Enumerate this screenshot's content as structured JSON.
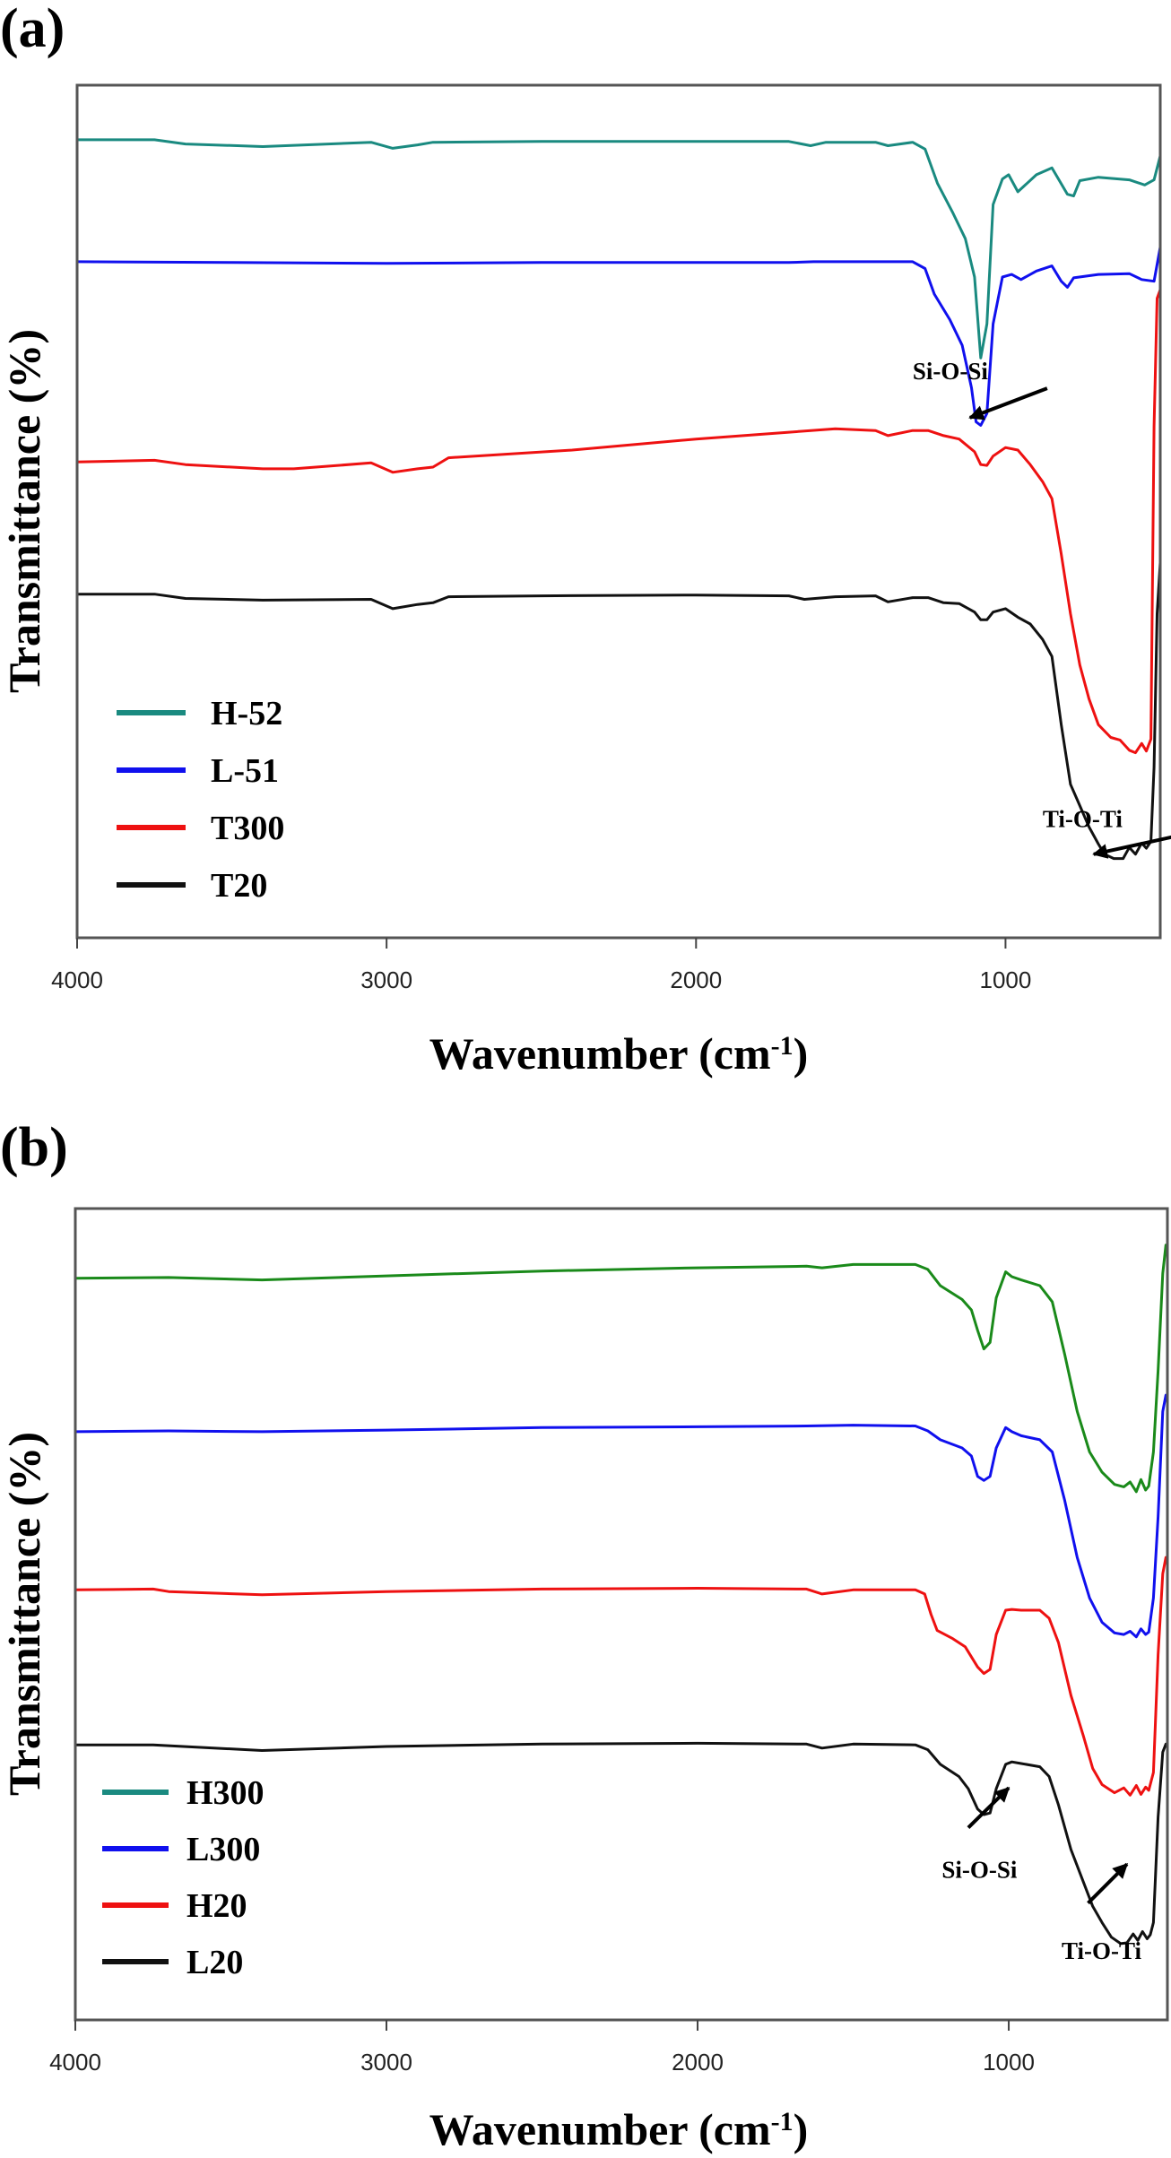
{
  "chart_data": [
    {
      "panel": "(a)",
      "type": "line",
      "title": "",
      "xlabel": "Wavenumber (cm",
      "xlabel_sup": "-1",
      "xlabel_close": ")",
      "ylabel": "Transmittance (%)",
      "xlim": [
        4000,
        500
      ],
      "ylim": [
        0,
        100
      ],
      "y_units": "relative (offset, no ticks)",
      "xticks": [
        4000,
        3000,
        2000,
        1000
      ],
      "xtick_labels": [
        "4000",
        "3000",
        "2000",
        "1000"
      ],
      "grid": false,
      "legend_position": "bottom-left",
      "series": [
        {
          "name": "H-52",
          "color": "#1a8a80",
          "x": [
            4000,
            3750,
            3650,
            3400,
            3050,
            2980,
            2900,
            2850,
            2500,
            2000,
            1700,
            1630,
            1580,
            1420,
            1380,
            1300,
            1260,
            1220,
            1170,
            1130,
            1100,
            1080,
            1060,
            1040,
            1010,
            990,
            960,
            900,
            850,
            800,
            780,
            760,
            700,
            600,
            550,
            520,
            500
          ],
          "y": [
            93.6,
            93.6,
            93.1,
            92.8,
            93.3,
            92.6,
            93.0,
            93.3,
            93.4,
            93.4,
            93.4,
            92.9,
            93.3,
            93.3,
            92.9,
            93.3,
            92.5,
            88.5,
            85.0,
            82.0,
            77.5,
            68.0,
            72.0,
            86.0,
            89.0,
            89.5,
            87.5,
            89.5,
            90.3,
            87.2,
            87.0,
            88.8,
            89.2,
            88.9,
            88.3,
            88.9,
            91.7
          ]
        },
        {
          "name": "L-51",
          "color": "#1010ee",
          "x": [
            4000,
            3500,
            3000,
            2500,
            2000,
            1700,
            1620,
            1300,
            1260,
            1230,
            1180,
            1140,
            1110,
            1095,
            1080,
            1060,
            1040,
            1010,
            980,
            950,
            900,
            850,
            820,
            800,
            780,
            700,
            600,
            560,
            520,
            500
          ],
          "y": [
            79.3,
            79.2,
            79.1,
            79.2,
            79.2,
            79.2,
            79.3,
            79.3,
            78.5,
            75.5,
            72.5,
            69.5,
            64.5,
            60.5,
            60.1,
            61.5,
            72.0,
            77.5,
            77.8,
            77.2,
            78.2,
            78.8,
            77.0,
            76.3,
            77.4,
            77.8,
            77.9,
            77.2,
            77.0,
            81.0
          ]
        },
        {
          "name": "T300",
          "color": "#ee1111",
          "x": [
            4000,
            3750,
            3650,
            3400,
            3300,
            3050,
            2980,
            2900,
            2850,
            2800,
            2400,
            2000,
            1700,
            1550,
            1420,
            1380,
            1300,
            1250,
            1200,
            1150,
            1100,
            1080,
            1060,
            1040,
            1000,
            960,
            920,
            880,
            850,
            820,
            790,
            760,
            730,
            700,
            660,
            630,
            600,
            580,
            560,
            545,
            530,
            520,
            510,
            500
          ],
          "y": [
            55.8,
            56.0,
            55.5,
            55.0,
            55.0,
            55.7,
            54.6,
            55.0,
            55.2,
            56.3,
            57.2,
            58.5,
            59.3,
            59.7,
            59.5,
            58.9,
            59.5,
            59.5,
            58.9,
            58.5,
            57.0,
            55.5,
            55.4,
            56.5,
            57.5,
            57.2,
            55.5,
            53.5,
            51.5,
            45.0,
            38.0,
            32.0,
            28.0,
            25.0,
            23.5,
            23.2,
            22.0,
            21.7,
            22.8,
            21.9,
            23.3,
            60.0,
            75.0,
            76.0
          ]
        },
        {
          "name": "T20",
          "color": "#111111",
          "x": [
            4000,
            3750,
            3650,
            3400,
            3050,
            2980,
            2900,
            2850,
            2800,
            2500,
            2000,
            1700,
            1650,
            1550,
            1420,
            1380,
            1300,
            1250,
            1200,
            1150,
            1100,
            1080,
            1060,
            1040,
            1000,
            960,
            920,
            880,
            850,
            820,
            790,
            760,
            730,
            700,
            680,
            650,
            620,
            600,
            580,
            560,
            545,
            530,
            520,
            510,
            500
          ],
          "y": [
            40.3,
            40.3,
            39.8,
            39.6,
            39.7,
            38.6,
            39.1,
            39.3,
            40.0,
            40.1,
            40.2,
            40.1,
            39.7,
            40.0,
            40.1,
            39.4,
            39.9,
            39.9,
            39.3,
            39.2,
            38.2,
            37.3,
            37.3,
            38.2,
            38.6,
            37.6,
            36.8,
            35.0,
            33.0,
            25.0,
            18.0,
            15.5,
            13.0,
            11.0,
            9.8,
            9.3,
            9.3,
            10.6,
            9.8,
            11.1,
            10.5,
            11.3,
            20.0,
            38.0,
            44.0
          ]
        }
      ],
      "annotations": [
        {
          "text": "Si-O-Si",
          "x_cm": 1300,
          "y_rel": 65.5,
          "arrow_to_cm": 1115,
          "arrow_to_rel": 61.0
        },
        {
          "text": "Ti-O-Ti",
          "x_cm": 880,
          "y_rel": 13.0,
          "arrow_to_cm": 715,
          "arrow_to_rel": 9.8
        }
      ]
    },
    {
      "panel": "(b)",
      "type": "line",
      "title": "",
      "xlabel": "Wavenumber (cm",
      "xlabel_sup": "-1",
      "xlabel_close": ")",
      "ylabel": "Transmittance (%)",
      "xlim": [
        4000,
        490
      ],
      "ylim": [
        0,
        100
      ],
      "y_units": "relative (offset, no ticks)",
      "xticks": [
        4000,
        3000,
        2000,
        1000
      ],
      "xtick_labels": [
        "4000",
        "3000",
        "2000",
        "1000"
      ],
      "grid": false,
      "legend_position": "bottom-left",
      "series": [
        {
          "name": "H300",
          "legend_color": "#1a8a80",
          "color": "#1a8a1a",
          "x": [
            4000,
            3700,
            3400,
            3000,
            2500,
            2000,
            1650,
            1600,
            1500,
            1300,
            1260,
            1220,
            1150,
            1120,
            1100,
            1080,
            1060,
            1040,
            1010,
            990,
            960,
            900,
            860,
            820,
            780,
            740,
            700,
            660,
            630,
            610,
            590,
            575,
            560,
            550,
            535,
            520,
            505,
            495
          ],
          "y": [
            91.4,
            91.5,
            91.2,
            91.7,
            92.3,
            92.7,
            92.9,
            92.7,
            93.1,
            93.1,
            92.5,
            90.5,
            88.8,
            87.5,
            85.0,
            82.7,
            83.5,
            89.0,
            92.2,
            91.6,
            91.2,
            90.5,
            88.5,
            82.0,
            75.0,
            70.0,
            67.5,
            66.0,
            65.7,
            66.3,
            65.1,
            66.6,
            65.3,
            65.8,
            70.0,
            80.0,
            92.0,
            95.5
          ]
        },
        {
          "name": "L300",
          "color": "#1010ee",
          "x": [
            4000,
            3700,
            3400,
            3000,
            2500,
            2000,
            1650,
            1500,
            1300,
            1260,
            1220,
            1150,
            1120,
            1100,
            1080,
            1060,
            1040,
            1010,
            990,
            960,
            900,
            860,
            820,
            780,
            740,
            700,
            660,
            630,
            610,
            590,
            575,
            560,
            550,
            535,
            520,
            505,
            495
          ],
          "y": [
            72.5,
            72.6,
            72.5,
            72.7,
            73.0,
            73.1,
            73.2,
            73.3,
            73.2,
            72.6,
            71.5,
            70.5,
            69.5,
            67.0,
            66.5,
            67.0,
            70.5,
            73.0,
            72.5,
            72.0,
            71.5,
            70.0,
            64.0,
            57.0,
            52.0,
            49.0,
            47.7,
            47.5,
            47.9,
            47.2,
            48.2,
            47.5,
            47.8,
            52.0,
            62.0,
            75.0,
            77.0
          ]
        },
        {
          "name": "H20",
          "color": "#ee1111",
          "x": [
            4000,
            3750,
            3700,
            3400,
            3000,
            2500,
            2000,
            1650,
            1600,
            1500,
            1300,
            1270,
            1250,
            1230,
            1180,
            1140,
            1100,
            1080,
            1060,
            1040,
            1010,
            990,
            960,
            900,
            870,
            840,
            800,
            760,
            730,
            700,
            660,
            630,
            610,
            590,
            575,
            560,
            550,
            535,
            520,
            505,
            495
          ],
          "y": [
            53.0,
            53.1,
            52.8,
            52.4,
            52.8,
            53.1,
            53.2,
            53.1,
            52.5,
            53.0,
            53.0,
            52.5,
            50.0,
            48.0,
            47.0,
            46.0,
            43.5,
            42.7,
            43.2,
            47.5,
            50.5,
            50.6,
            50.5,
            50.5,
            49.5,
            46.5,
            40.0,
            35.0,
            31.0,
            29.0,
            28.0,
            28.6,
            27.7,
            28.9,
            27.8,
            28.7,
            28.3,
            30.5,
            45.0,
            55.0,
            57.0
          ]
        },
        {
          "name": "L20",
          "color": "#111111",
          "x": [
            4000,
            3750,
            3400,
            3000,
            2500,
            2000,
            1650,
            1600,
            1500,
            1300,
            1260,
            1220,
            1160,
            1130,
            1100,
            1080,
            1060,
            1040,
            1010,
            990,
            960,
            900,
            870,
            840,
            800,
            760,
            730,
            700,
            670,
            640,
            620,
            600,
            585,
            570,
            555,
            545,
            535,
            520,
            505,
            495
          ],
          "y": [
            33.9,
            33.9,
            33.2,
            33.7,
            34.0,
            34.1,
            34.0,
            33.5,
            34.0,
            33.9,
            33.3,
            31.5,
            30.0,
            28.5,
            26.0,
            25.3,
            25.5,
            28.5,
            31.5,
            31.8,
            31.6,
            31.2,
            30.0,
            26.5,
            21.0,
            17.0,
            14.0,
            12.0,
            10.2,
            9.4,
            9.5,
            10.6,
            9.8,
            10.9,
            10.0,
            10.5,
            12.0,
            25.0,
            33.0,
            34.0
          ]
        }
      ],
      "annotations": [
        {
          "text": "Si-O-Si",
          "x_cm": 1215,
          "y_rel": 17.5,
          "arrow_from_cm": 1130,
          "arrow_from_rel": 23.7,
          "arrow_to_cm": 1000,
          "arrow_to_rel": 28.6
        },
        {
          "text": "Ti-O-Ti",
          "x_cm": 830,
          "y_rel": 7.5,
          "arrow_from_cm": 745,
          "arrow_from_rel": 14.4,
          "arrow_to_cm": 620,
          "arrow_to_rel": 19.2
        }
      ]
    }
  ]
}
